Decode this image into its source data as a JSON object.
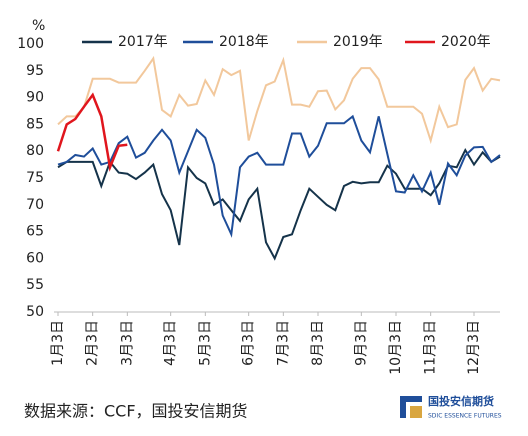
{
  "chart_data": {
    "type": "line",
    "y_unit": "%",
    "categories": [
      "1月3日",
      null,
      null,
      null,
      "2月3日",
      null,
      null,
      null,
      "3月3日",
      null,
      null,
      null,
      null,
      "4月3日",
      null,
      null,
      null,
      "5月3日",
      null,
      null,
      null,
      null,
      "6月3日",
      null,
      null,
      null,
      "7月3日",
      null,
      null,
      null,
      "8月3日",
      null,
      null,
      null,
      null,
      "9月3日",
      null,
      null,
      null,
      "10月3日",
      null,
      null,
      null,
      "11月3日",
      null,
      null,
      null,
      null,
      "12月3日",
      null,
      null,
      null
    ],
    "series": [
      {
        "name": "2017年",
        "color": "#15334a",
        "values": [
          77,
          78,
          78,
          78,
          78,
          73.5,
          78,
          76,
          75.8,
          74.8,
          76,
          77.5,
          72,
          69,
          62.5,
          77,
          75,
          74,
          70,
          71,
          69,
          67,
          71,
          73,
          63,
          60,
          64,
          64.5,
          69,
          73,
          71.5,
          70,
          69,
          73.5,
          74.3,
          74,
          74.2,
          74.2,
          77.3,
          75.8,
          73,
          73,
          73,
          71.8,
          74,
          77.3,
          77,
          80.2,
          77.5,
          79.8,
          78,
          79
        ]
      },
      {
        "name": "2018年",
        "color": "#1f4e9a",
        "values": [
          77.5,
          78,
          79.3,
          79,
          80.5,
          77.5,
          78,
          81.5,
          82.7,
          78.8,
          79.7,
          82,
          84,
          82,
          76,
          80,
          84,
          82.5,
          77.5,
          68,
          64.5,
          77,
          79,
          79.7,
          77.5,
          77.5,
          77.5,
          83.3,
          83.3,
          79,
          81,
          85.2,
          85.2,
          85.2,
          86.5,
          82,
          79.8,
          86.5,
          79.5,
          72.5,
          72.3,
          75.5,
          72.5,
          76,
          70,
          77.7,
          75.5,
          79.2,
          80.7,
          80.8,
          78,
          79.3
        ]
      },
      {
        "name": "2019年",
        "color": "#f2c89c",
        "values": [
          85,
          86.5,
          86.5,
          88.2,
          93.5,
          93.5,
          93.5,
          92.8,
          92.8,
          92.8,
          95,
          97.3,
          87.7,
          86.5,
          90.5,
          88.5,
          88.8,
          93.2,
          90.5,
          95.3,
          94.2,
          95,
          82,
          87.5,
          92.3,
          93,
          97,
          88.7,
          88.7,
          88.3,
          91.2,
          91.3,
          87.8,
          89.5,
          93.5,
          95.5,
          95.5,
          93.4,
          88.3,
          88.3,
          88.3,
          88.3,
          87,
          82,
          88.3,
          84.5,
          85,
          93.3,
          95.5,
          91.3,
          93.5,
          93.2
        ]
      },
      {
        "name": "2020年",
        "color": "#e0161d",
        "values": [
          80,
          85,
          86,
          88.3,
          90.5,
          86.5,
          77,
          81,
          81.2,
          null,
          null,
          null,
          null,
          null,
          null,
          null,
          null,
          null,
          null,
          null,
          null,
          null,
          null,
          null,
          null,
          null,
          null,
          null,
          null,
          null,
          null,
          null,
          null,
          null,
          null,
          null,
          null,
          null,
          null,
          null,
          null,
          null,
          null,
          null,
          null,
          null,
          null,
          null,
          null,
          null,
          null,
          null
        ]
      }
    ],
    "ylim": [
      50,
      100
    ],
    "yticks": [
      50,
      55,
      60,
      65,
      70,
      75,
      80,
      85,
      90,
      95,
      100
    ],
    "source": "数据来源：CCF，国投安信期货",
    "logo_text": "国投安信期货",
    "logo_subtext": "SDIC ESSENCE FUTURES"
  }
}
